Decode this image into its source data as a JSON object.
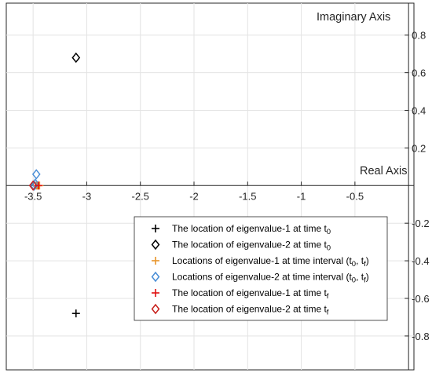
{
  "chart_data": {
    "type": "scatter",
    "title": "",
    "xlabel": "Real Axis",
    "ylabel": "Imaginary Axis",
    "xlim": [
      -3.75,
      0.05
    ],
    "ylim": [
      -0.98,
      0.97
    ],
    "grid": true,
    "x_ticks": [
      -3.5,
      -3,
      -2.5,
      -2,
      -1.5,
      -1,
      -0.5
    ],
    "x_tick_labels": [
      "-3.5",
      "-3",
      "-2.5",
      "-2",
      "-1.5",
      "-1",
      "-0.5"
    ],
    "y_ticks": [
      -0.8,
      -0.6,
      -0.4,
      -0.2,
      0.2,
      0.4,
      0.6,
      0.8
    ],
    "y_tick_labels": [
      "-0.8",
      "-0.6",
      "-0.4",
      "-0.2",
      "0.2",
      "0.4",
      "0.6",
      "0.8"
    ],
    "legend_position": "bottom-right",
    "series": [
      {
        "name": "The location of eigenvalue-1 at time t",
        "name_sub": "0",
        "name_tail": "",
        "marker": "plus",
        "color": "#000000",
        "points": [
          {
            "x": -3.1,
            "y": -0.68
          }
        ]
      },
      {
        "name": "The location of eigenvalue-2 at time t",
        "name_sub": "0",
        "name_tail": "",
        "marker": "diamond",
        "color": "#000000",
        "points": [
          {
            "x": -3.1,
            "y": 0.68
          }
        ]
      },
      {
        "name": "Locations of eigenvalue-1 at time interval (t",
        "name_sub": "0",
        "name_mid": ", t",
        "name_sub2": "f",
        "name_tail": ")",
        "marker": "plus",
        "color": "#e8952a",
        "points": [
          {
            "x": -3.47,
            "y": 0.0
          },
          {
            "x": -3.46,
            "y": 0.0
          },
          {
            "x": -3.45,
            "y": 0.0
          },
          {
            "x": -3.44,
            "y": 0.0
          }
        ]
      },
      {
        "name": "Locations of eigenvalue-2 at time interval (t",
        "name_sub": "0",
        "name_mid": ", t",
        "name_sub2": "f",
        "name_tail": ")",
        "marker": "diamond",
        "color": "#4a8ed6",
        "points": [
          {
            "x": -3.47,
            "y": 0.06
          },
          {
            "x": -3.48,
            "y": 0.01
          },
          {
            "x": -3.49,
            "y": 0.0
          }
        ]
      },
      {
        "name": "The location of eigenvalue-1 at time t",
        "name_sub": "f",
        "name_tail": "",
        "marker": "plus",
        "color": "#e01010",
        "points": [
          {
            "x": -3.45,
            "y": 0.0
          }
        ]
      },
      {
        "name": "The location of eigenvalue-2 at time t",
        "name_sub": "f",
        "name_tail": "",
        "marker": "diamond",
        "color": "#c8201c",
        "points": [
          {
            "x": -3.5,
            "y": 0.0
          }
        ]
      }
    ]
  }
}
